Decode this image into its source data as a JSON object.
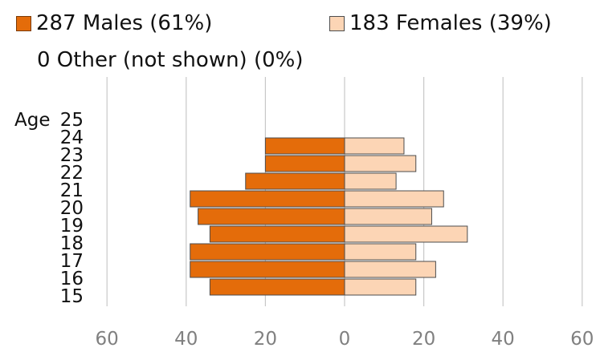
{
  "legend": {
    "males_label": "287 Males (61%)",
    "females_label": "183 Females (39%)",
    "other_label": "0 Other (not shown) (0%)"
  },
  "colors": {
    "males": "#e46c0a",
    "females": "#fcd5b5",
    "bar_outline": "#4d4d4d",
    "grid": "#c8c8c8",
    "tick_text": "#808080"
  },
  "chart_data": {
    "type": "bar",
    "orientation": "horizontal-population-pyramid",
    "age_axis_title": "Age",
    "categories": [
      "25",
      "24",
      "23",
      "22",
      "21",
      "20",
      "19",
      "18",
      "17",
      "16",
      "15"
    ],
    "series": [
      {
        "name": "Males",
        "values": [
          0,
          20,
          20,
          25,
          39,
          37,
          34,
          39,
          39,
          34,
          0
        ]
      },
      {
        "name": "Females",
        "values": [
          0,
          15,
          18,
          13,
          25,
          22,
          31,
          18,
          23,
          18,
          0
        ]
      }
    ],
    "x_ticks": [
      {
        "value": -60,
        "label": "60"
      },
      {
        "value": -40,
        "label": "40"
      },
      {
        "value": -20,
        "label": "20"
      },
      {
        "value": 0,
        "label": "0"
      },
      {
        "value": 20,
        "label": "20"
      },
      {
        "value": 40,
        "label": "40"
      },
      {
        "value": 60,
        "label": "60"
      }
    ],
    "xlim": [
      -60,
      60
    ],
    "grid": true
  }
}
